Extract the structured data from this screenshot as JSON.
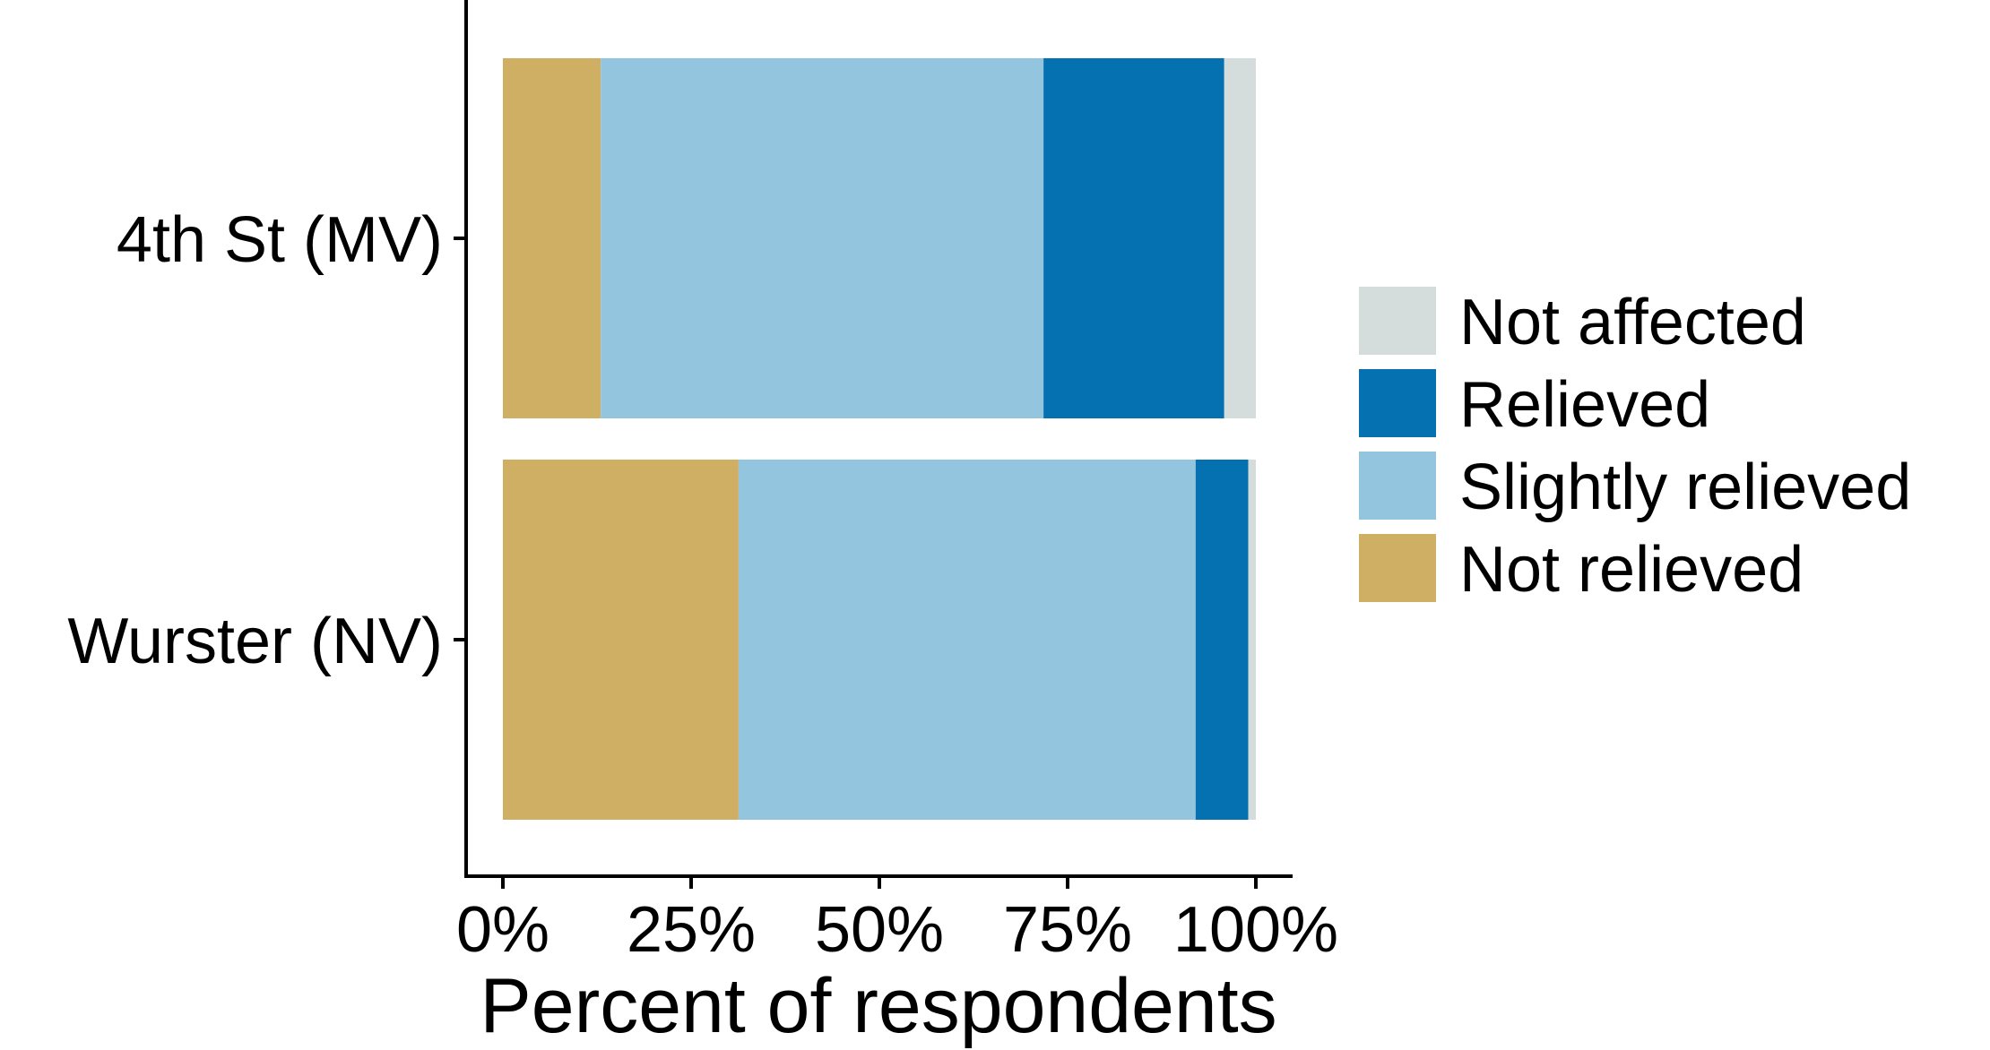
{
  "chart_data": {
    "type": "bar",
    "orientation": "horizontal",
    "stacked": true,
    "title": "",
    "xlabel": "Percent of respondents",
    "ylabel": "",
    "xlim": [
      0,
      100
    ],
    "x_ticks": [
      0,
      25,
      50,
      75,
      100
    ],
    "x_tick_labels": [
      "0%",
      "25%",
      "50%",
      "75%",
      "100%"
    ],
    "categories": [
      "4th St (MV)",
      "Wurster (NV)"
    ],
    "series": [
      {
        "name": "Not relieved",
        "color": "#CFAF63",
        "values": [
          13.0,
          31.3
        ]
      },
      {
        "name": "Slightly relieved",
        "color": "#94C5DE",
        "values": [
          58.8,
          60.7
        ]
      },
      {
        "name": "Relieved",
        "color": "#0571B0",
        "values": [
          24.0,
          7.0
        ]
      },
      {
        "name": "Not affected",
        "color": "#D4DCDC",
        "values": [
          4.2,
          1.0
        ]
      }
    ],
    "legend": {
      "position": "right",
      "order": [
        "Not affected",
        "Relieved",
        "Slightly relieved",
        "Not relieved"
      ]
    },
    "grid": false
  }
}
